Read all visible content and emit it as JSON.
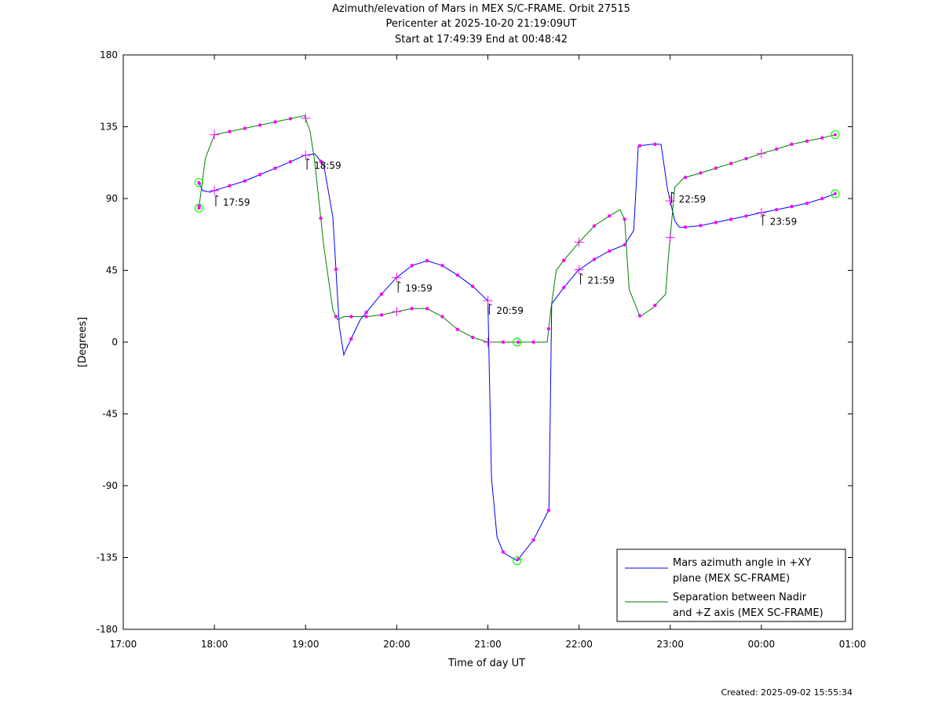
{
  "chart_data": {
    "type": "line",
    "title": "Azimuth/elevation of Mars in MEX S/C-FRAME.  Orbit 27515",
    "subtitle_lines": [
      "Pericenter at 2025-10-20 21:19:09UT",
      "Start at 17:49:39 End at 00:48:42"
    ],
    "xlabel": "Time of day UT",
    "ylabel": "[Degrees]",
    "xlim": [
      17.0,
      25.0
    ],
    "ylim": [
      -180,
      180
    ],
    "x_ticks": [
      {
        "v": 17,
        "label": "17:00"
      },
      {
        "v": 18,
        "label": "18:00"
      },
      {
        "v": 19,
        "label": "19:00"
      },
      {
        "v": 20,
        "label": "20:00"
      },
      {
        "v": 21,
        "label": "21:00"
      },
      {
        "v": 22,
        "label": "22:00"
      },
      {
        "v": 23,
        "label": "23:00"
      },
      {
        "v": 24,
        "label": "00:00"
      },
      {
        "v": 25,
        "label": "01:00"
      }
    ],
    "y_ticks": [
      180,
      135,
      90,
      45,
      0,
      -45,
      -90,
      -135,
      -180
    ],
    "grid": false,
    "legend_position": "bottom-right",
    "series": [
      {
        "name": "Mars azimuth angle in +XY plane (MEX SC-FRAME)",
        "legend_lines": [
          "Mars azimuth angle in +XY",
          "plane (MEX SC-FRAME)"
        ],
        "color": "#0000ff",
        "x": [
          17.83,
          17.87,
          17.95,
          18.0,
          18.167,
          18.333,
          18.5,
          18.667,
          18.833,
          18.99,
          19.1,
          19.2,
          19.3,
          19.37,
          19.42,
          19.45,
          19.6,
          19.8,
          19.99,
          20.167,
          20.333,
          20.5,
          20.667,
          20.833,
          20.98,
          21.0,
          21.04,
          21.1,
          21.17,
          21.32,
          21.5,
          21.67,
          21.7,
          21.83,
          21.99,
          22.17,
          22.33,
          22.5,
          22.6,
          22.65,
          22.8,
          22.9,
          22.97,
          23.05,
          23.1,
          23.15,
          23.33,
          23.5,
          23.667,
          23.833,
          23.99,
          24.167,
          24.333,
          24.5,
          24.67,
          24.81
        ],
        "y": [
          100,
          95,
          94,
          95,
          98,
          101,
          105,
          109,
          113,
          117,
          118,
          111,
          78,
          10,
          -8,
          -4,
          14,
          28,
          40,
          48,
          51,
          48,
          42,
          35,
          27,
          26,
          -85,
          -122,
          -132,
          -137,
          -124,
          -105,
          24,
          34,
          45,
          52,
          57,
          61,
          70,
          123,
          124,
          124,
          96,
          76,
          72,
          72,
          73,
          75,
          77,
          79,
          81,
          83,
          85,
          87,
          90,
          93
        ]
      },
      {
        "name": "Separation between Nadir and +Z axis (MEX SC-FRAME)",
        "legend_lines": [
          "Separation between Nadir",
          "and +Z axis (MEX SC-FRAME)"
        ],
        "color": "#008000",
        "x": [
          17.83,
          17.9,
          18.0,
          18.167,
          18.333,
          18.5,
          18.667,
          18.833,
          18.99,
          19.05,
          19.1,
          19.2,
          19.3,
          19.35,
          19.42,
          19.5,
          19.67,
          19.833,
          19.99,
          20.167,
          20.333,
          20.5,
          20.667,
          20.833,
          21.0,
          21.32,
          21.5,
          21.65,
          21.69,
          21.75,
          21.83,
          21.99,
          22.17,
          22.33,
          22.45,
          22.5,
          22.55,
          22.67,
          22.8,
          22.95,
          22.98,
          23.05,
          23.15,
          23.333,
          23.5,
          23.667,
          23.833,
          23.99,
          24.167,
          24.333,
          24.5,
          24.67,
          24.81
        ],
        "y": [
          84,
          115,
          130,
          132,
          134,
          136,
          138,
          140,
          142,
          132,
          113,
          60,
          20,
          14,
          16,
          16,
          16,
          17,
          19,
          21,
          21,
          16,
          8,
          3,
          0,
          0,
          0,
          0,
          20,
          45,
          51,
          62,
          73,
          79,
          83,
          77,
          33,
          16,
          21,
          30,
          53,
          97,
          103,
          106,
          109,
          112,
          115,
          118,
          121,
          124,
          126,
          128,
          130
        ]
      }
    ],
    "annotations": [
      {
        "label": "17:59",
        "x": 17.99,
        "y": 94
      },
      {
        "label": "18:59",
        "x": 18.99,
        "y": 117
      },
      {
        "label": "19:59",
        "x": 19.99,
        "y": 40
      },
      {
        "label": "20:59",
        "x": 20.99,
        "y": 26
      },
      {
        "label": "21:59",
        "x": 21.99,
        "y": 45
      },
      {
        "label": "22:59",
        "x": 22.99,
        "y": 96
      },
      {
        "label": "23:59",
        "x": 23.99,
        "y": 82
      }
    ],
    "marker_colors": {
      "dots": "#ff00ff",
      "endpoints": "#00ff00"
    },
    "created": "Created: 2025-09-02 15:55:34"
  }
}
